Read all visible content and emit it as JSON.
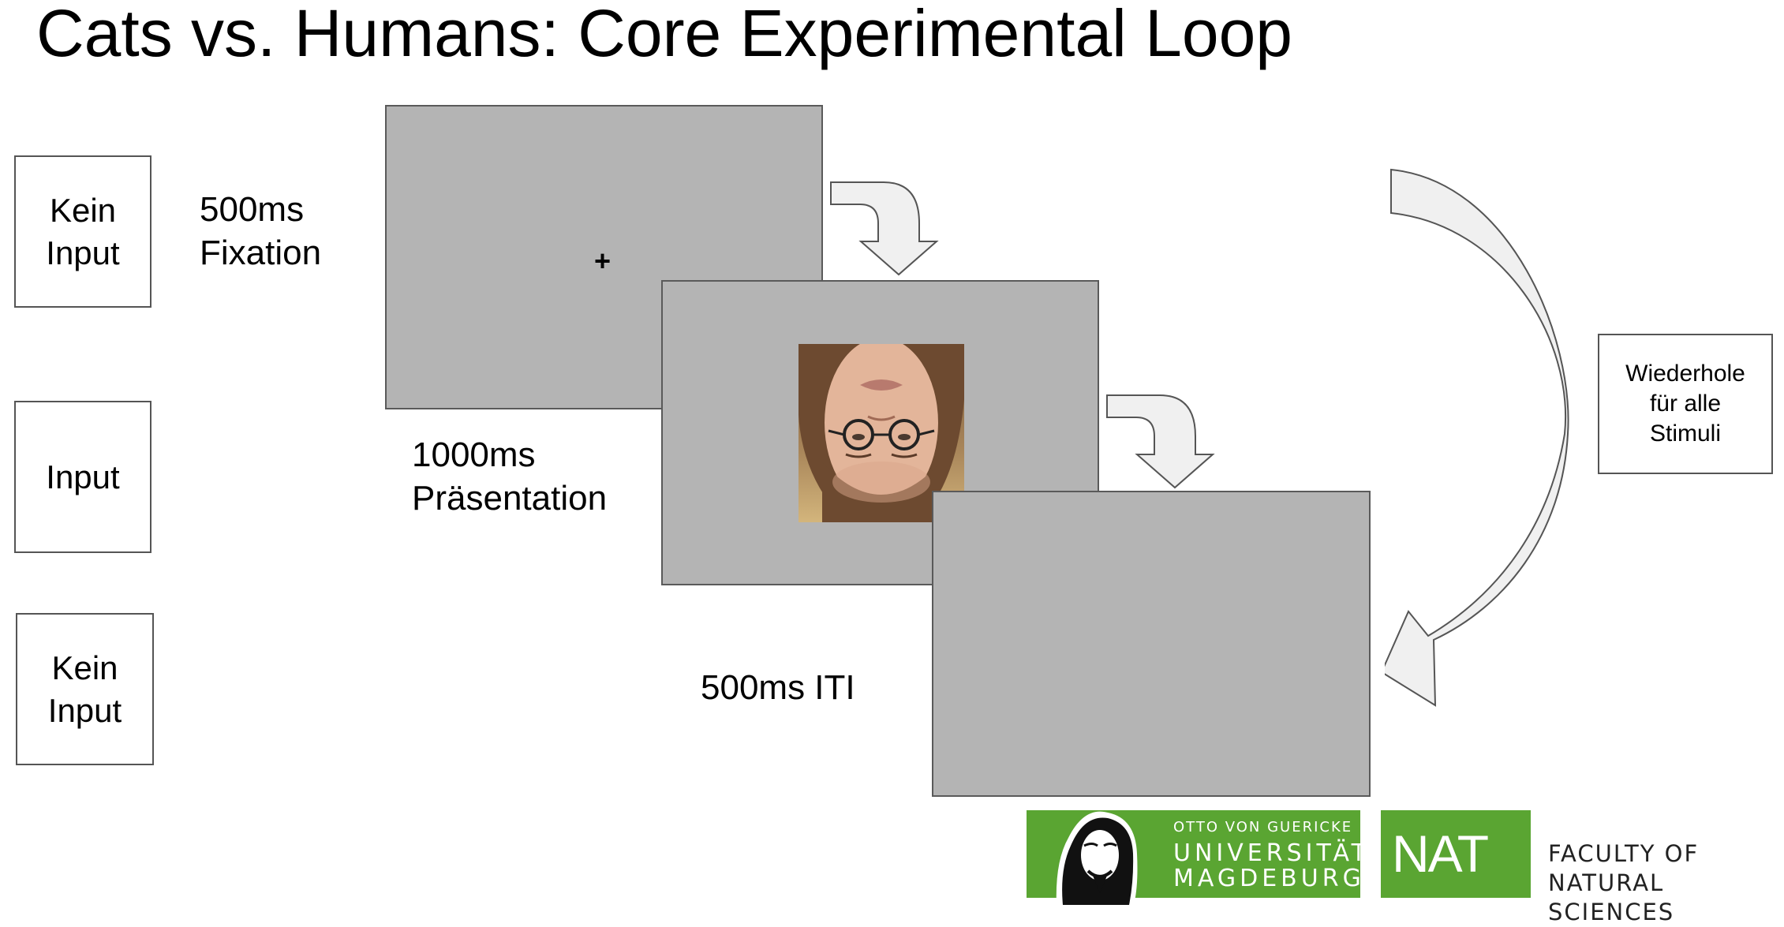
{
  "title": "Cats vs. Humans: Core Experimental Loop",
  "steps": [
    {
      "input_label": "Kein\nInput",
      "duration_label": "500ms\nFixation",
      "screen_content": "+"
    },
    {
      "input_label": "Input",
      "duration_label": "1000ms\nPräsentation",
      "screen_content": "upside-down face photo"
    },
    {
      "input_label": "Kein\nInput",
      "duration_label": "500ms ITI",
      "screen_content": ""
    }
  ],
  "repeat_label": "Wiederhole\nfür alle\nStimuli",
  "logos": {
    "university_top": "OTTO VON GUERICKE",
    "university_line1": "UNIVERSITÄT",
    "university_line2": "MAGDEBURG",
    "nat": "NAT",
    "faculty": "FACULTY OF\nNATURAL SCIENCES"
  },
  "colors": {
    "screen_gray": "#b4b4b4",
    "arrow_fill": "#f0f0f0",
    "logo_green": "#5aa532"
  }
}
